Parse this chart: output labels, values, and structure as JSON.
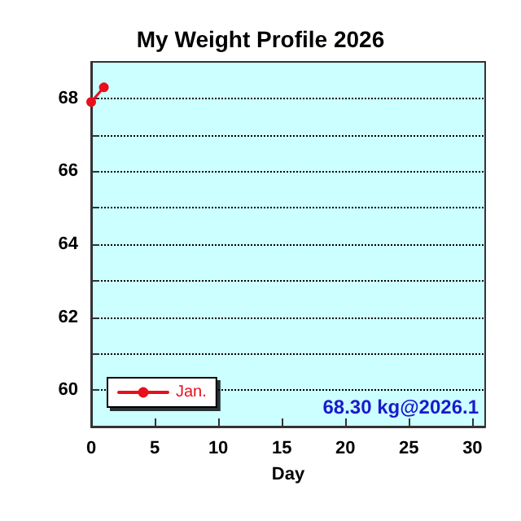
{
  "chart_data": {
    "type": "line",
    "title": "My Weight Profile 2026",
    "xlabel": "Day",
    "x": [
      0,
      1
    ],
    "series": [
      {
        "name": "Jan.",
        "color": "#e8101c",
        "values": [
          67.9,
          68.3
        ]
      }
    ],
    "xlim": [
      0,
      31
    ],
    "xticks": [
      0,
      5,
      10,
      15,
      20,
      25,
      30
    ],
    "ylim": [
      59,
      69
    ],
    "yticks": [
      60,
      {
        "value": 61,
        "label": null
      },
      62,
      {
        "value": 63,
        "label": null
      },
      64,
      {
        "value": 65,
        "label": null
      },
      66,
      {
        "value": 67,
        "label": null
      },
      68
    ],
    "grid": "y",
    "legend": "bottom left",
    "marker": "circle",
    "line_style": "solid",
    "annotations": [
      "68.30 kg@2026.1"
    ]
  }
}
